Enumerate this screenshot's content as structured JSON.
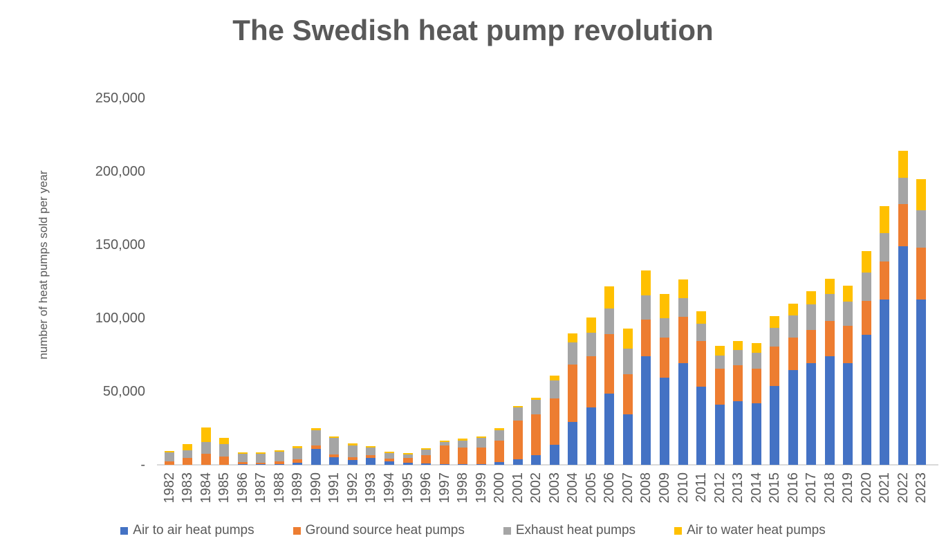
{
  "chart_data": {
    "type": "bar",
    "stacked": true,
    "title": "The Swedish heat pump revolution",
    "ylabel": "number of heat pumps sold per year",
    "xlabel": "",
    "ylim": [
      0,
      250000
    ],
    "ytick_interval": 50000,
    "ytick_labels": [
      "-",
      "50,000",
      "100,000",
      "150,000",
      "200,000",
      "250,000"
    ],
    "grid": false,
    "legend_position": "bottom",
    "text_color": "#595959",
    "axis_line_color": "#D9D9D9",
    "categories": [
      1982,
      1983,
      1984,
      1985,
      1986,
      1987,
      1988,
      1989,
      1990,
      1991,
      1992,
      1993,
      1994,
      1995,
      1996,
      1997,
      1998,
      1999,
      2000,
      2001,
      2002,
      2003,
      2004,
      2005,
      2006,
      2007,
      2008,
      2009,
      2010,
      2011,
      2012,
      2013,
      2014,
      2015,
      2016,
      2017,
      2018,
      2019,
      2020,
      2021,
      2022,
      2023
    ],
    "series": [
      {
        "name": "Air to air heat pumps",
        "color": "#4472C4",
        "values": [
          0,
          0,
          0,
          0,
          500,
          400,
          600,
          1600,
          10700,
          5200,
          3300,
          4600,
          2400,
          1400,
          1000,
          600,
          300,
          300,
          2100,
          3900,
          6600,
          13800,
          29300,
          39000,
          48800,
          34300,
          73900,
          59500,
          69400,
          53200,
          40900,
          43300,
          42200,
          54000,
          64500,
          69400,
          73900,
          69400,
          88900,
          112900,
          149100,
          112900
        ]
      },
      {
        "name": "Ground source heat pumps",
        "color": "#ED7D31",
        "values": [
          2500,
          4700,
          7400,
          5700,
          1200,
          900,
          1600,
          2000,
          2400,
          2000,
          1900,
          2200,
          2000,
          3200,
          5800,
          12400,
          11400,
          11400,
          14400,
          26100,
          27700,
          31500,
          39100,
          34900,
          40500,
          27500,
          25200,
          27500,
          31400,
          31000,
          24500,
          24500,
          23600,
          26700,
          22500,
          22600,
          24100,
          25200,
          22800,
          26000,
          28800,
          35400
        ]
      },
      {
        "name": "Exhaust heat pumps",
        "color": "#A5A5A5",
        "values": [
          5800,
          5100,
          8000,
          8300,
          6000,
          6200,
          6600,
          7900,
          10600,
          11200,
          8100,
          4900,
          3800,
          2500,
          3600,
          2400,
          5000,
          6700,
          7200,
          9000,
          9900,
          12300,
          15000,
          16200,
          17300,
          17300,
          16500,
          12900,
          12900,
          12200,
          9300,
          10500,
          10500,
          12900,
          14900,
          17300,
          18400,
          16500,
          19600,
          19300,
          17900,
          25200
        ]
      },
      {
        "name": "Air to water heat pumps",
        "color": "#FFC000",
        "values": [
          1100,
          4500,
          10000,
          4600,
          900,
          1000,
          1100,
          1100,
          1200,
          1100,
          1200,
          1000,
          900,
          900,
          1000,
          1000,
          1100,
          1100,
          1300,
          1300,
          1400,
          3100,
          6000,
          10200,
          15000,
          13700,
          17000,
          16500,
          12900,
          8200,
          6500,
          6300,
          6500,
          8000,
          8200,
          9100,
          10400,
          10900,
          14300,
          18400,
          18600,
          21300
        ]
      }
    ]
  }
}
